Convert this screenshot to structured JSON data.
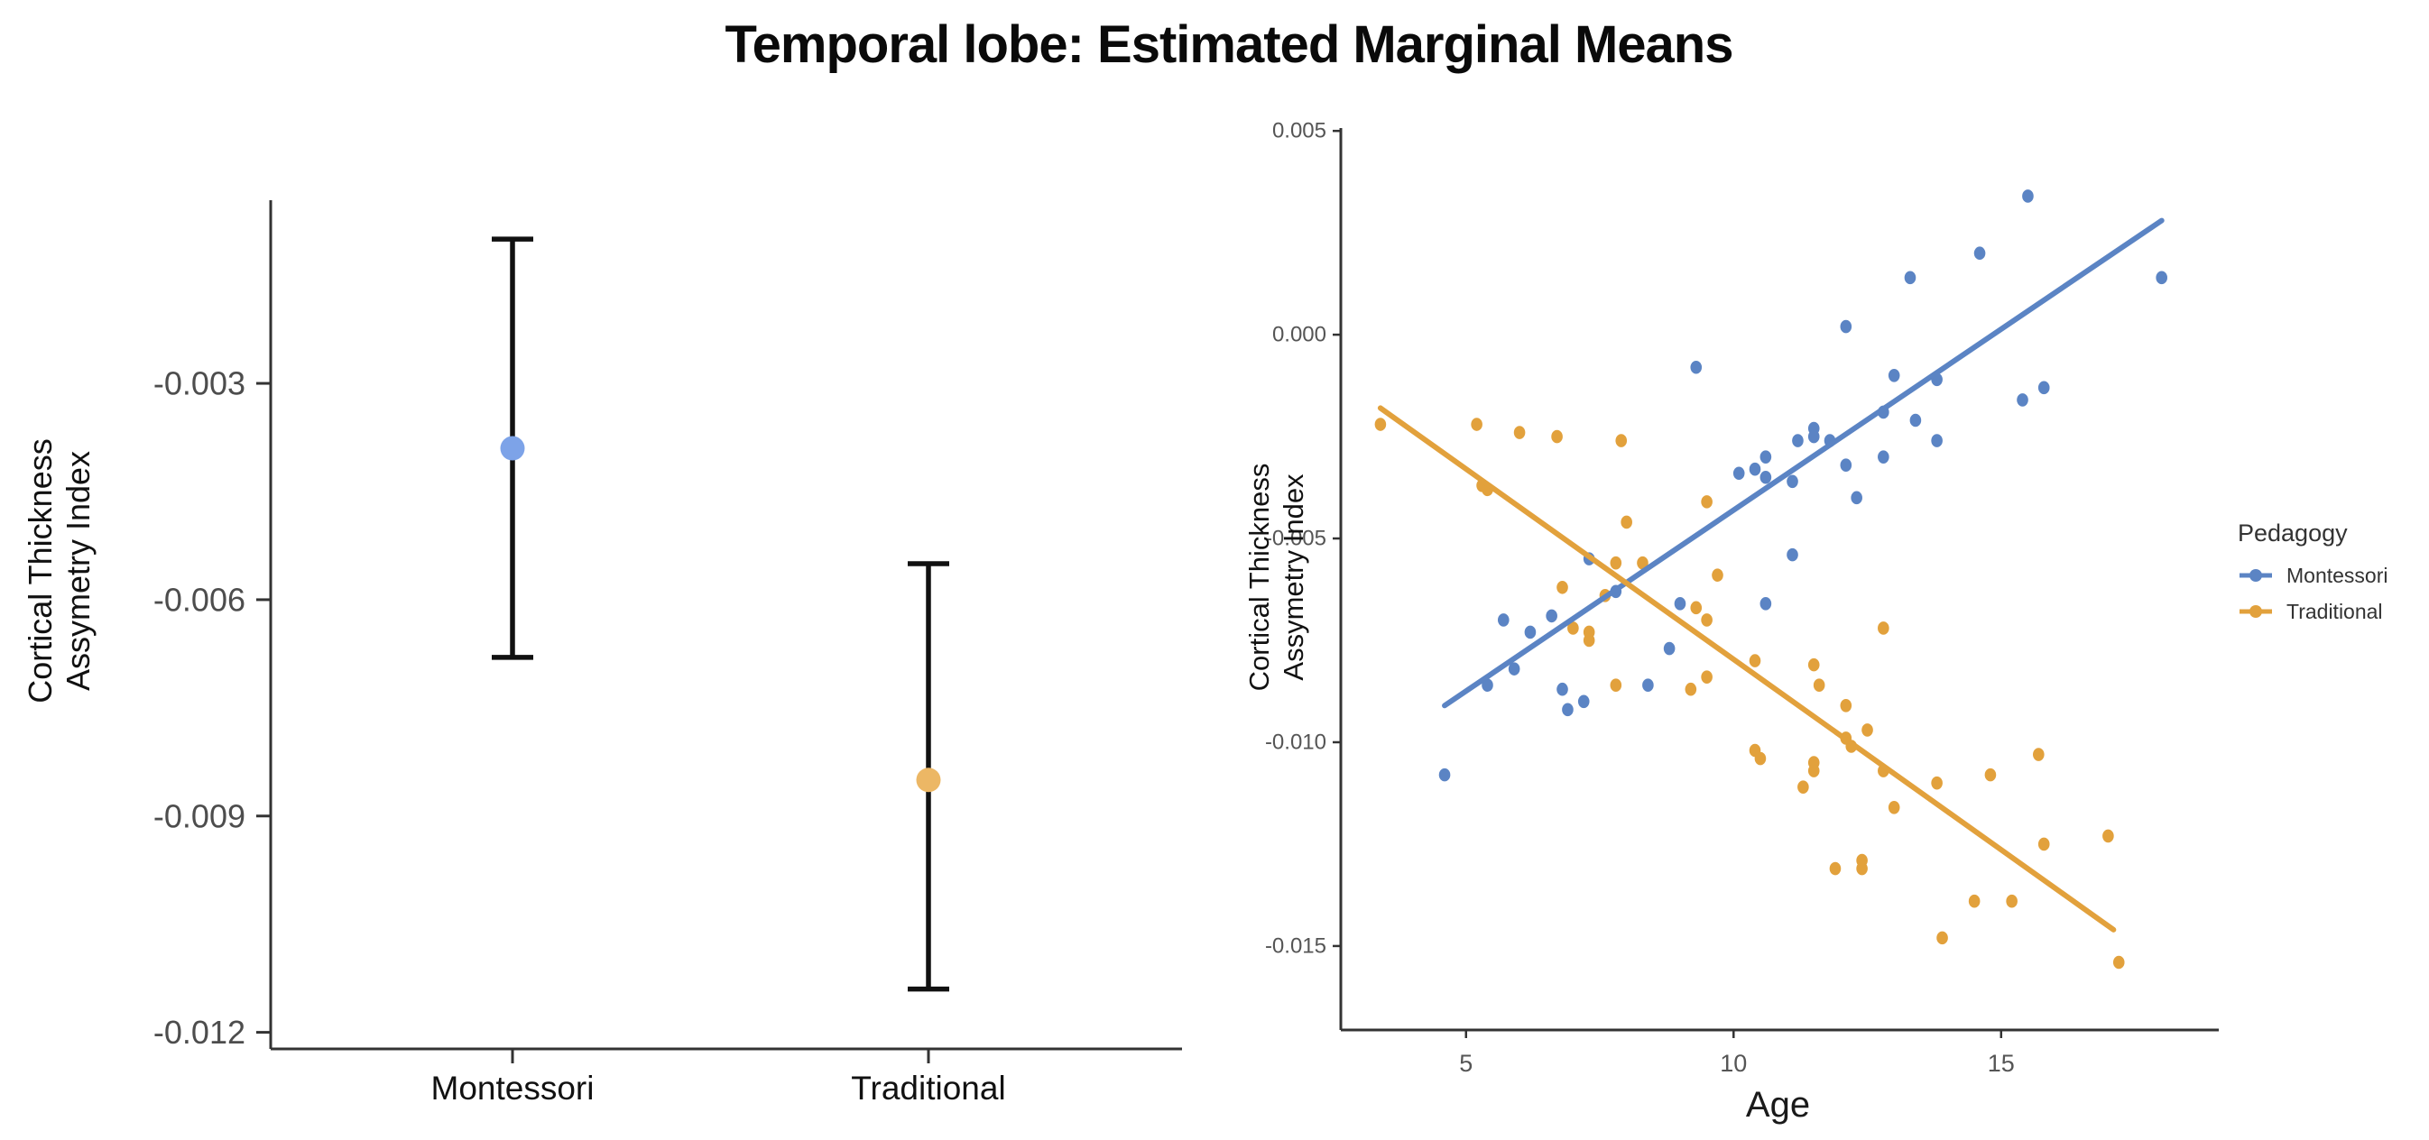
{
  "title": "Temporal lobe: Estimated Marginal Means",
  "colors": {
    "emm_blue": "#7da3e8",
    "emm_orange": "#ecb765",
    "scatter_blue": "#5b84c4",
    "scatter_orange": "#e2a13c",
    "errorbar": "#111111",
    "axis": "#333333",
    "tick_text_left": "#4d4d4d",
    "tick_text_right": "#555555",
    "label_text": "#111111"
  },
  "chart_data": [
    {
      "type": "pointrange",
      "title": "",
      "ylabel_lines": [
        "Cortical Thickness",
        "Assymetry Index"
      ],
      "xlabel": "",
      "categories": [
        "Montessori",
        "Traditional"
      ],
      "series": [
        {
          "name": "Montessori",
          "mean": -0.0039,
          "ci_lower": -0.0068,
          "ci_upper": -0.001,
          "color": "#7da3e8"
        },
        {
          "name": "Traditional",
          "mean": -0.0085,
          "ci_lower": -0.0114,
          "ci_upper": -0.0055,
          "color": "#ecb765"
        }
      ],
      "yticks": [
        -0.003,
        -0.006,
        -0.009,
        -0.012
      ],
      "ytick_labels": [
        "-0.003",
        "-0.006",
        "-0.009",
        "-0.012"
      ],
      "ylim": [
        -0.01223,
        -0.00046
      ],
      "grid": false
    },
    {
      "type": "scatter",
      "title": "",
      "xlabel": "Age",
      "ylabel_lines": [
        "Cortical Thickness",
        "Assymetry Index"
      ],
      "xticks": [
        5,
        10,
        15
      ],
      "xtick_labels": [
        "5",
        "10",
        "15"
      ],
      "yticks": [
        0.005,
        0.0,
        -0.005,
        -0.01,
        -0.015
      ],
      "ytick_labels": [
        "0.005",
        "0.000",
        "-0.005",
        "-0.010",
        "-0.015"
      ],
      "xlim": [
        2.66,
        19.0
      ],
      "ylim": [
        -0.01706,
        0.00507
      ],
      "grid": false,
      "legend": {
        "title": "Pedagogy",
        "position": "right"
      },
      "series": [
        {
          "name": "Montessori",
          "color": "#5b84c4",
          "trend": [
            [
              4.6,
              -0.0091
            ],
            [
              18.0,
              0.0028
            ]
          ],
          "points": [
            [
              4.6,
              -0.0108
            ],
            [
              5.4,
              -0.0086
            ],
            [
              5.7,
              -0.007
            ],
            [
              5.9,
              -0.0082
            ],
            [
              6.2,
              -0.0073
            ],
            [
              6.6,
              -0.0069
            ],
            [
              6.8,
              -0.0087
            ],
            [
              6.9,
              -0.0092
            ],
            [
              7.2,
              -0.009
            ],
            [
              7.3,
              -0.0055
            ],
            [
              7.8,
              -0.0063
            ],
            [
              8.4,
              -0.0086
            ],
            [
              8.8,
              -0.0077
            ],
            [
              9.0,
              -0.0066
            ],
            [
              9.3,
              -0.0008
            ],
            [
              10.1,
              -0.0034
            ],
            [
              10.4,
              -0.0033
            ],
            [
              10.6,
              -0.003
            ],
            [
              10.6,
              -0.0035
            ],
            [
              10.6,
              -0.0066
            ],
            [
              11.1,
              -0.0036
            ],
            [
              11.1,
              -0.0054
            ],
            [
              11.2,
              -0.0026
            ],
            [
              11.5,
              -0.0023
            ],
            [
              11.5,
              -0.0025
            ],
            [
              11.8,
              -0.0026
            ],
            [
              12.1,
              -0.0032
            ],
            [
              12.1,
              0.0002
            ],
            [
              12.3,
              -0.004
            ],
            [
              12.8,
              -0.0019
            ],
            [
              12.8,
              -0.003
            ],
            [
              13.0,
              -0.001
            ],
            [
              13.3,
              0.0014
            ],
            [
              13.4,
              -0.0021
            ],
            [
              13.8,
              -0.0011
            ],
            [
              13.8,
              -0.0026
            ],
            [
              14.6,
              0.002
            ],
            [
              15.4,
              -0.0016
            ],
            [
              15.5,
              0.0034
            ],
            [
              15.8,
              -0.0013
            ],
            [
              18.0,
              0.0014
            ]
          ]
        },
        {
          "name": "Traditional",
          "color": "#e2a13c",
          "trend": [
            [
              3.4,
              -0.0018
            ],
            [
              17.1,
              -0.0146
            ]
          ],
          "points": [
            [
              3.4,
              -0.0022
            ],
            [
              5.2,
              -0.0022
            ],
            [
              5.3,
              -0.0037
            ],
            [
              5.4,
              -0.0038
            ],
            [
              6.0,
              -0.0024
            ],
            [
              6.7,
              -0.0025
            ],
            [
              6.8,
              -0.0062
            ],
            [
              7.0,
              -0.0072
            ],
            [
              7.3,
              -0.0073
            ],
            [
              7.3,
              -0.0075
            ],
            [
              7.6,
              -0.0064
            ],
            [
              7.9,
              -0.0026
            ],
            [
              7.8,
              -0.0056
            ],
            [
              8.3,
              -0.0056
            ],
            [
              7.8,
              -0.0086
            ],
            [
              8.0,
              -0.0046
            ],
            [
              9.2,
              -0.0087
            ],
            [
              9.3,
              -0.0067
            ],
            [
              9.5,
              -0.007
            ],
            [
              9.5,
              -0.0084
            ],
            [
              9.5,
              -0.0041
            ],
            [
              9.7,
              -0.0059
            ],
            [
              10.4,
              -0.008
            ],
            [
              10.4,
              -0.0102
            ],
            [
              10.5,
              -0.0104
            ],
            [
              11.3,
              -0.0111
            ],
            [
              11.5,
              -0.0081
            ],
            [
              11.5,
              -0.0105
            ],
            [
              11.5,
              -0.0107
            ],
            [
              11.6,
              -0.0086
            ],
            [
              11.9,
              -0.0131
            ],
            [
              12.1,
              -0.0091
            ],
            [
              12.1,
              -0.0099
            ],
            [
              12.2,
              -0.0101
            ],
            [
              12.4,
              -0.0129
            ],
            [
              12.4,
              -0.0131
            ],
            [
              12.5,
              -0.0097
            ],
            [
              12.8,
              -0.0072
            ],
            [
              12.8,
              -0.0107
            ],
            [
              13.0,
              -0.0116
            ],
            [
              13.8,
              -0.011
            ],
            [
              13.9,
              -0.0148
            ],
            [
              14.5,
              -0.0139
            ],
            [
              14.8,
              -0.0108
            ],
            [
              15.2,
              -0.0139
            ],
            [
              15.7,
              -0.0103
            ],
            [
              15.8,
              -0.0125
            ],
            [
              17.0,
              -0.0123
            ],
            [
              17.2,
              -0.0154
            ]
          ]
        }
      ]
    }
  ]
}
